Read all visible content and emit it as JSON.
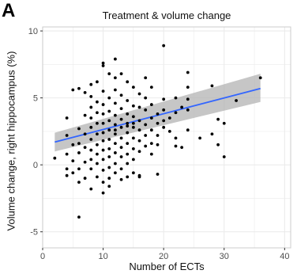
{
  "panel_label": "A",
  "chart_data": {
    "type": "scatter",
    "title": "Treatment & volume change",
    "xlabel": "Number of ECTs",
    "ylabel": "Volume change, right hippocampus (%)",
    "xlim": [
      0,
      41
    ],
    "ylim": [
      -6.2,
      10.3
    ],
    "xticks": [
      0,
      10,
      20,
      30,
      40
    ],
    "yticks": [
      -5,
      0,
      5,
      10
    ],
    "grid": true,
    "legend": "none",
    "colors": {
      "points": "#000000",
      "fit_line": "#3366ff",
      "ci_band": "#b3b3b3",
      "grid": "#ebebeb",
      "frame": "#cccccc"
    },
    "regression": {
      "x": [
        2,
        36
      ],
      "y": [
        1.7,
        5.7
      ],
      "ci_lower_y": [
        1.0,
        4.7
      ],
      "ci_upper_y": [
        2.4,
        6.8
      ]
    },
    "points": [
      [
        2,
        0.5
      ],
      [
        4,
        2.2
      ],
      [
        4,
        0.8
      ],
      [
        4,
        -0.3
      ],
      [
        4,
        -0.8
      ],
      [
        4,
        3.5
      ],
      [
        5,
        1.5
      ],
      [
        5,
        0.3
      ],
      [
        5,
        -0.6
      ],
      [
        5,
        5.6
      ],
      [
        6,
        2.7
      ],
      [
        6,
        1.6
      ],
      [
        6,
        0.9
      ],
      [
        6,
        -0.3
      ],
      [
        6,
        -1.3
      ],
      [
        6,
        5.7
      ],
      [
        6,
        -3.9
      ],
      [
        7,
        3.7
      ],
      [
        7,
        2.3
      ],
      [
        7,
        1.3
      ],
      [
        7,
        0.2
      ],
      [
        7,
        5.4
      ],
      [
        7,
        -1.0
      ],
      [
        8,
        4.3
      ],
      [
        8,
        3.5
      ],
      [
        8,
        2.8
      ],
      [
        8,
        1.9
      ],
      [
        8,
        1.1
      ],
      [
        8,
        0.4
      ],
      [
        8,
        -0.3
      ],
      [
        8,
        -1.8
      ],
      [
        8,
        6.0
      ],
      [
        8,
        5.1
      ],
      [
        9,
        3.9
      ],
      [
        9,
        3.1
      ],
      [
        9,
        2.3
      ],
      [
        9,
        1.5
      ],
      [
        9,
        0.8
      ],
      [
        9,
        0.1
      ],
      [
        9,
        -0.9
      ],
      [
        9,
        4.7
      ],
      [
        9,
        6.2
      ],
      [
        10,
        4.5
      ],
      [
        10,
        3.8
      ],
      [
        10,
        3.1
      ],
      [
        10,
        2.4
      ],
      [
        10,
        1.8
      ],
      [
        10,
        1.1
      ],
      [
        10,
        0.4
      ],
      [
        10,
        -0.4
      ],
      [
        10,
        -1.3
      ],
      [
        10,
        5.5
      ],
      [
        10,
        7.4
      ],
      [
        10,
        7.6
      ],
      [
        10,
        -2.1
      ],
      [
        11,
        4.0
      ],
      [
        11,
        3.3
      ],
      [
        11,
        2.6
      ],
      [
        11,
        1.9
      ],
      [
        11,
        1.2
      ],
      [
        11,
        0.6
      ],
      [
        11,
        -0.2
      ],
      [
        11,
        5.0
      ],
      [
        11,
        6.8
      ],
      [
        11,
        -1.0
      ],
      [
        12,
        4.6
      ],
      [
        12,
        3.7
      ],
      [
        12,
        3.0
      ],
      [
        12,
        2.3
      ],
      [
        12,
        1.6
      ],
      [
        12,
        0.9
      ],
      [
        12,
        0.1
      ],
      [
        12,
        -0.6
      ],
      [
        12,
        5.6
      ],
      [
        12,
        6.5
      ],
      [
        12,
        7.9
      ],
      [
        13,
        4.2
      ],
      [
        13,
        3.4
      ],
      [
        13,
        2.8
      ],
      [
        13,
        2.0
      ],
      [
        13,
        1.3
      ],
      [
        13,
        0.6
      ],
      [
        13,
        -0.3
      ],
      [
        13,
        5.2
      ],
      [
        13,
        6.8
      ],
      [
        14,
        3.8
      ],
      [
        14,
        3.1
      ],
      [
        14,
        2.4
      ],
      [
        14,
        1.6
      ],
      [
        14,
        0.8
      ],
      [
        14,
        0.1
      ],
      [
        14,
        4.8
      ],
      [
        14,
        6.2
      ],
      [
        14,
        -0.9
      ],
      [
        15,
        4.4
      ],
      [
        15,
        3.6
      ],
      [
        15,
        2.8
      ],
      [
        15,
        2.0
      ],
      [
        15,
        1.2
      ],
      [
        15,
        0.4
      ],
      [
        15,
        5.8
      ],
      [
        15,
        -0.6
      ],
      [
        16,
        3.3
      ],
      [
        16,
        2.6
      ],
      [
        16,
        1.8
      ],
      [
        16,
        1.0
      ],
      [
        16,
        4.3
      ],
      [
        16,
        5.3
      ],
      [
        16,
        -0.8
      ],
      [
        17,
        3.0
      ],
      [
        17,
        2.2
      ],
      [
        17,
        1.4
      ],
      [
        17,
        4.1
      ],
      [
        17,
        5.0
      ],
      [
        17,
        6.5
      ],
      [
        18,
        3.5
      ],
      [
        18,
        2.6
      ],
      [
        18,
        1.6
      ],
      [
        18,
        0.8
      ],
      [
        18,
        4.5
      ],
      [
        18,
        5.8
      ],
      [
        19,
        3.1
      ],
      [
        19,
        2.2
      ],
      [
        19,
        1.5
      ],
      [
        19,
        3.8
      ],
      [
        19,
        -0.7
      ],
      [
        20,
        4.1
      ],
      [
        20,
        3.3
      ],
      [
        20,
        2.8
      ],
      [
        20,
        4.9
      ],
      [
        20,
        8.9
      ],
      [
        21,
        2.5
      ],
      [
        21,
        3.5
      ],
      [
        22,
        2.0
      ],
      [
        22,
        3.9
      ],
      [
        22,
        5.0
      ],
      [
        23,
        4.3
      ],
      [
        23,
        1.3
      ],
      [
        24,
        4.9
      ],
      [
        24,
        5.8
      ],
      [
        24,
        6.9
      ],
      [
        24,
        4.1
      ],
      [
        24,
        2.6
      ],
      [
        28,
        5.9
      ],
      [
        28,
        2.3
      ],
      [
        29,
        3.4
      ],
      [
        29,
        1.5
      ],
      [
        30,
        3.1
      ],
      [
        30,
        0.6
      ],
      [
        32,
        4.8
      ],
      [
        36,
        6.5
      ],
      [
        26,
        2.0
      ],
      [
        22,
        1.4
      ],
      [
        11,
        -1.6
      ],
      [
        13,
        -1.1
      ],
      [
        16,
        -0.9
      ],
      [
        14,
        2.9
      ],
      [
        15,
        3.1
      ],
      [
        12,
        2.6
      ]
    ]
  }
}
